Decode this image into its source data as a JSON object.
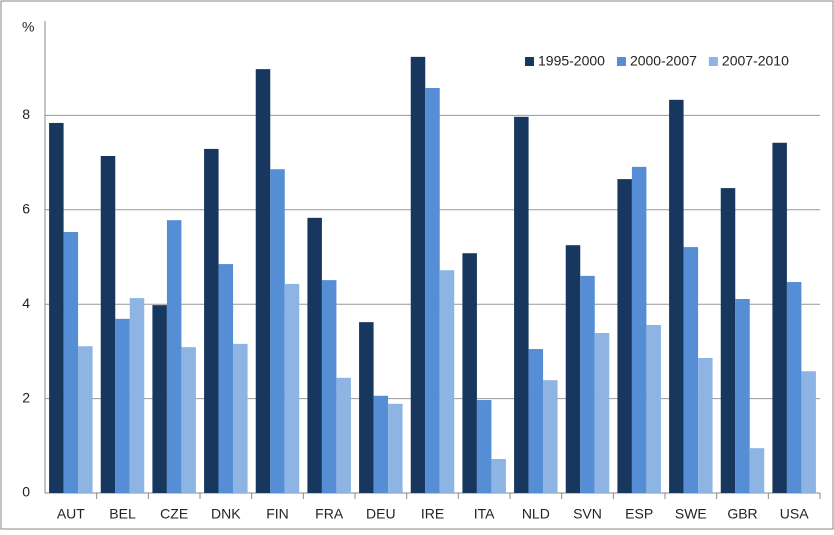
{
  "chart_data": {
    "type": "bar",
    "y_label": "%",
    "categories": [
      "AUT",
      "BEL",
      "CZE",
      "DNK",
      "FIN",
      "FRA",
      "DEU",
      "IRE",
      "ITA",
      "NLD",
      "SVN",
      "ESP",
      "SWE",
      "GBR",
      "USA"
    ],
    "series": [
      {
        "name": "1995-2000",
        "color": "#17375e",
        "values": [
          7.84,
          7.14,
          3.98,
          7.29,
          8.98,
          5.83,
          3.62,
          9.24,
          5.08,
          7.97,
          5.25,
          6.65,
          8.33,
          6.46,
          7.42
        ]
      },
      {
        "name": "2000-2007",
        "color": "#558ed5",
        "values": [
          5.53,
          3.69,
          5.78,
          4.85,
          6.86,
          4.51,
          2.06,
          8.58,
          1.97,
          3.05,
          4.6,
          6.91,
          5.21,
          4.11,
          4.47
        ]
      },
      {
        "name": "2007-2010",
        "color": "#8eb4e3",
        "values": [
          3.11,
          4.13,
          3.09,
          3.16,
          4.43,
          2.44,
          1.89,
          4.72,
          0.72,
          2.39,
          3.39,
          3.56,
          2.86,
          0.95,
          2.58
        ]
      }
    ],
    "ylim": [
      0,
      10
    ],
    "yticks": [
      0,
      2,
      4,
      6,
      8
    ],
    "grid": true,
    "legend": "top-right"
  }
}
